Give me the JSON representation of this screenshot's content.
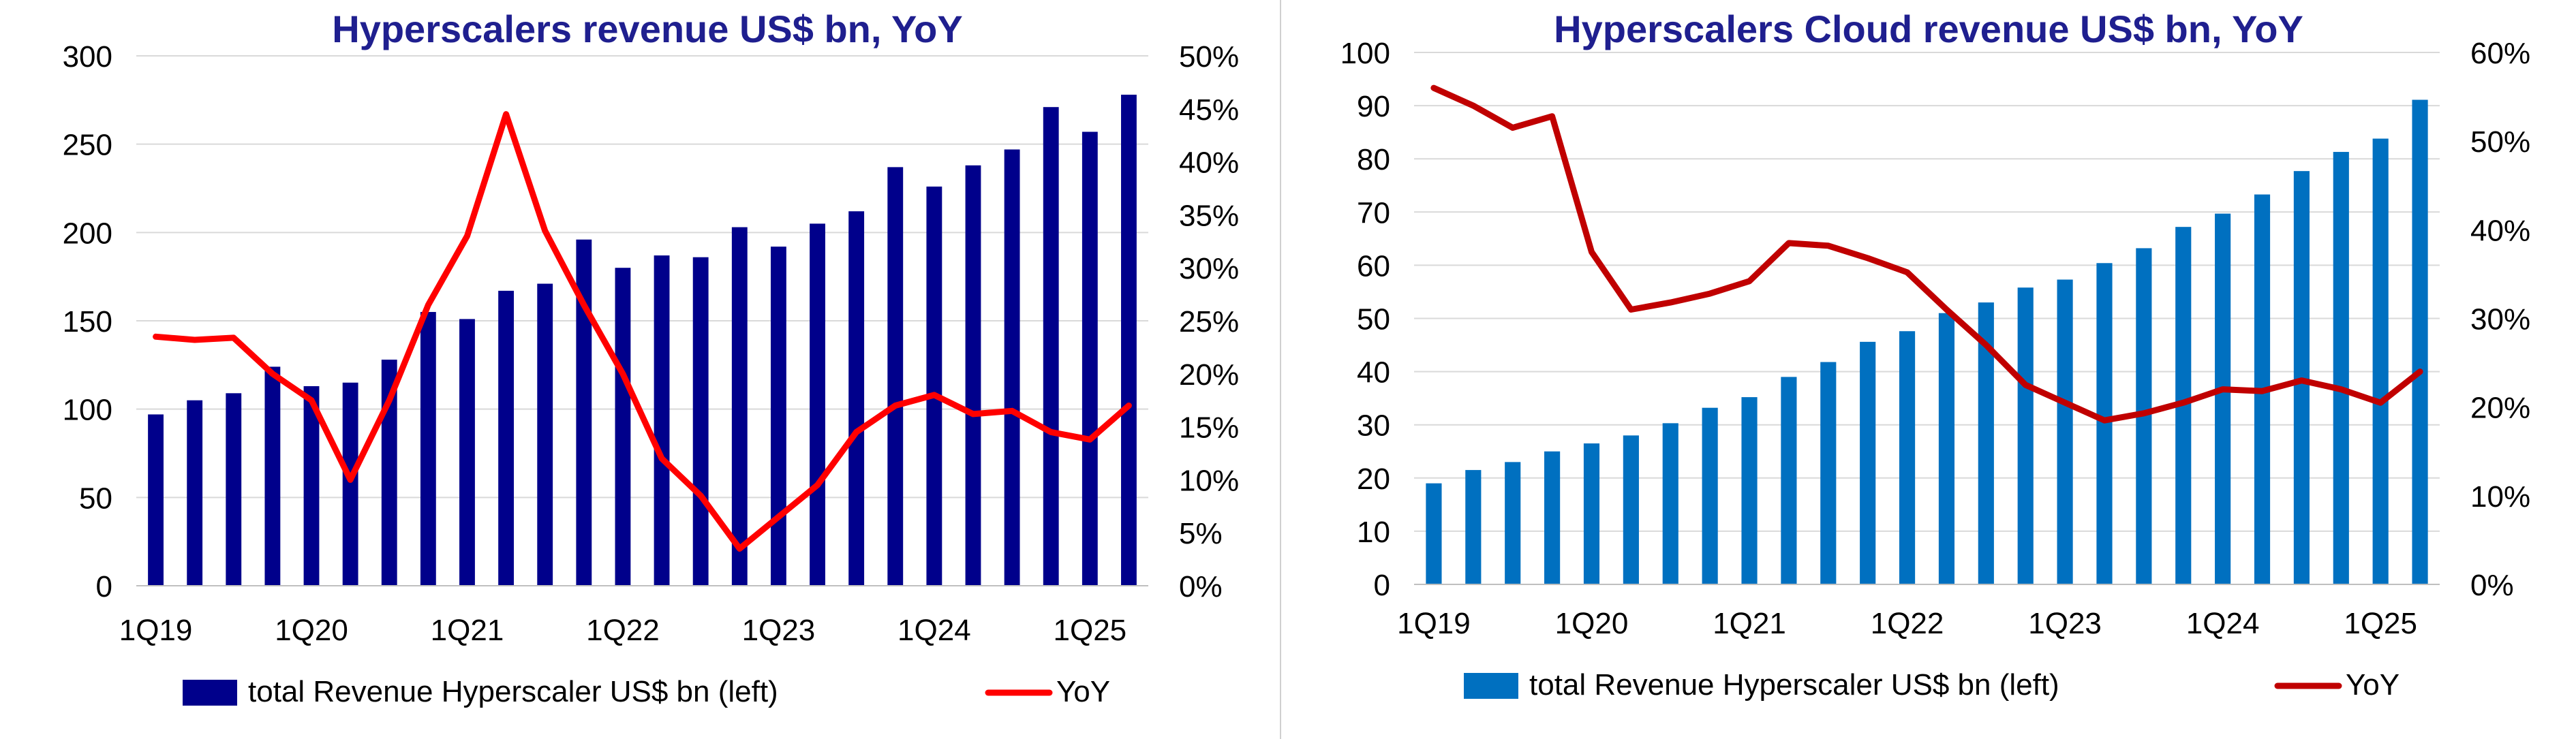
{
  "chart_data": [
    {
      "type": "bar",
      "title": "Hyperscalers revenue US$ bn, YoY",
      "title_color": "#1F1F8F",
      "bar_color": "#00008B",
      "line_color": "#FF0000",
      "categories": [
        "1Q19",
        "2Q19",
        "3Q19",
        "4Q19",
        "1Q20",
        "2Q20",
        "3Q20",
        "4Q20",
        "1Q21",
        "2Q21",
        "3Q21",
        "4Q21",
        "1Q22",
        "2Q22",
        "3Q22",
        "4Q22",
        "1Q23",
        "2Q23",
        "3Q23",
        "4Q23",
        "1Q24",
        "2Q24",
        "3Q24",
        "4Q24",
        "1Q25",
        "2Q25"
      ],
      "x_tick_labels": [
        "1Q19",
        "1Q20",
        "1Q21",
        "1Q22",
        "1Q23",
        "1Q24",
        "1Q25"
      ],
      "x_tick_indices": [
        0,
        4,
        8,
        12,
        16,
        20,
        24
      ],
      "y_left_ticks": [
        "0",
        "50",
        "100",
        "150",
        "200",
        "250",
        "300"
      ],
      "y_left_range": [
        0,
        300
      ],
      "y_right_ticks": [
        "0%",
        "5%",
        "10%",
        "15%",
        "20%",
        "25%",
        "30%",
        "35%",
        "40%",
        "45%",
        "50%"
      ],
      "y_right_range": [
        0,
        0.5
      ],
      "series": [
        {
          "name": "total Revenue Hyperscaler US$ bn (left)",
          "kind": "bar",
          "axis": "left",
          "values": [
            97,
            105,
            109,
            124,
            113,
            115,
            128,
            155,
            151,
            167,
            171,
            196,
            180,
            187,
            186,
            203,
            192,
            205,
            212,
            237,
            226,
            238,
            247,
            271,
            257,
            278
          ]
        },
        {
          "name": "YoY",
          "kind": "line",
          "axis": "right",
          "values": [
            0.235,
            0.232,
            0.234,
            0.2,
            0.175,
            0.1,
            0.175,
            0.265,
            0.33,
            0.445,
            0.335,
            0.265,
            0.2,
            0.12,
            0.085,
            0.035,
            0.065,
            0.095,
            0.145,
            0.17,
            0.18,
            0.162,
            0.165,
            0.145,
            0.138,
            0.17
          ]
        }
      ],
      "legend": {
        "bar_label": "total Revenue Hyperscaler US$ bn (left)",
        "line_label": "YoY",
        "position": "bottom"
      },
      "grid": true
    },
    {
      "type": "bar",
      "title": "Hyperscalers Cloud revenue US$ bn, YoY",
      "title_color": "#1F1F8F",
      "bar_color": "#0070C0",
      "line_color": "#C00000",
      "categories": [
        "1Q19",
        "2Q19",
        "3Q19",
        "4Q19",
        "1Q20",
        "2Q20",
        "3Q20",
        "4Q20",
        "1Q21",
        "2Q21",
        "3Q21",
        "4Q21",
        "1Q22",
        "2Q22",
        "3Q22",
        "4Q22",
        "1Q23",
        "2Q23",
        "3Q23",
        "4Q23",
        "1Q24",
        "2Q24",
        "3Q24",
        "4Q24",
        "1Q25",
        "2Q25"
      ],
      "x_tick_labels": [
        "1Q19",
        "1Q20",
        "1Q21",
        "1Q22",
        "1Q23",
        "1Q24",
        "1Q25"
      ],
      "x_tick_indices": [
        0,
        4,
        8,
        12,
        16,
        20,
        24
      ],
      "y_left_ticks": [
        "0",
        "10",
        "20",
        "30",
        "40",
        "50",
        "60",
        "70",
        "80",
        "90",
        "100"
      ],
      "y_left_range": [
        0,
        100
      ],
      "y_right_ticks": [
        "0%",
        "10%",
        "20%",
        "30%",
        "40%",
        "50%",
        "60%"
      ],
      "y_right_range": [
        0,
        0.6
      ],
      "series": [
        {
          "name": "total Revenue Hyperscaler US$ bn (left)",
          "kind": "bar",
          "axis": "left",
          "values": [
            19,
            21.5,
            23,
            25,
            26.5,
            28,
            30.3,
            33.2,
            35.2,
            39,
            41.8,
            45.6,
            47.6,
            51,
            53,
            55.8,
            57.3,
            60.4,
            63.2,
            67.2,
            69.7,
            73.3,
            77.7,
            81.3,
            83.8,
            91.1
          ]
        },
        {
          "name": "YoY",
          "kind": "line",
          "axis": "right",
          "values": [
            0.56,
            0.54,
            0.515,
            0.528,
            0.375,
            0.31,
            0.318,
            0.328,
            0.342,
            0.385,
            0.382,
            0.368,
            0.352,
            0.31,
            0.27,
            0.225,
            0.205,
            0.185,
            0.193,
            0.205,
            0.22,
            0.218,
            0.23,
            0.22,
            0.205,
            0.24
          ]
        }
      ],
      "legend": {
        "bar_label": "total Revenue Hyperscaler US$ bn (left)",
        "line_label": "YoY",
        "position": "bottom"
      },
      "grid": true
    }
  ]
}
